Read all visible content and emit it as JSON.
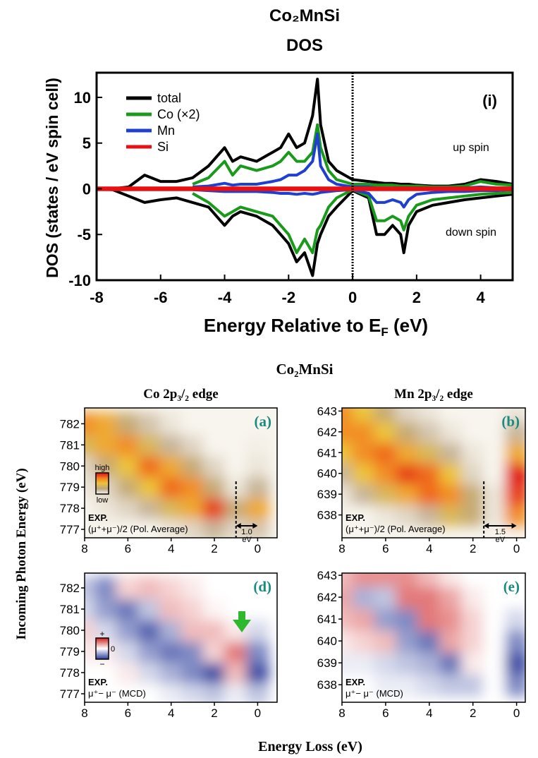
{
  "figure": {
    "title": "Co₂MnSi",
    "ylabel": "Incoming Photon Energy (eV)",
    "xlabel": "Energy Loss (eV)"
  },
  "chart_data": [
    {
      "type": "line",
      "title": "Co₂MnSi",
      "subtitle": "DOS",
      "ylabel": "DOS (states / eV spin cell)",
      "xlabel": [
        "Energy Relative to E",
        "F",
        " (eV)"
      ],
      "annotations": [
        "(i)",
        "up spin",
        "down spin"
      ],
      "xlim": [
        -8,
        5
      ],
      "ylim": [
        -10,
        12.7
      ],
      "xticks": [
        -8,
        -6,
        -4,
        -2,
        0,
        2,
        4
      ],
      "yticks": [
        -10,
        -5,
        0,
        5,
        10
      ],
      "vline": 0,
      "legend": "top-left",
      "x": [
        -8,
        -7.5,
        -7,
        -6.5,
        -6,
        -5.5,
        -5,
        -4.5,
        -4,
        -3.75,
        -3.5,
        -3,
        -2.5,
        -2.25,
        -2,
        -1.75,
        -1.5,
        -1.25,
        -1.1,
        -1,
        -0.75,
        -0.5,
        0,
        0.5,
        0.75,
        1,
        1.25,
        1.5,
        1.6,
        1.75,
        2,
        2.5,
        3,
        3.5,
        4,
        4.5,
        5
      ],
      "series": [
        {
          "name": "total",
          "color": "#000000",
          "values": [
            0,
            0,
            0.2,
            1.5,
            0.8,
            0.8,
            1.2,
            2.5,
            4.5,
            3,
            3.5,
            3,
            4,
            4.5,
            6,
            4.5,
            5,
            8,
            12,
            7,
            3,
            2,
            1,
            0.8,
            0.7,
            0.6,
            0.6,
            0.5,
            0.5,
            0.5,
            0.4,
            0.3,
            0.3,
            0.5,
            1,
            0.8,
            0.5
          ],
          "down_values": [
            0,
            -0.1,
            -0.8,
            -1.5,
            -1.2,
            -1,
            -1.5,
            -2,
            -4,
            -3,
            -2.5,
            -3,
            -4,
            -5,
            -6,
            -8,
            -7,
            -9.5,
            -6,
            -5,
            -3,
            -2,
            -0.2,
            -1,
            -5,
            -5,
            -4,
            -5,
            -7,
            -4,
            -2.5,
            -1.8,
            -1.5,
            -1.2,
            -1,
            -0.8,
            -0.6
          ]
        },
        {
          "name": "Co (×2)",
          "color": "#1a9a1a",
          "values": [
            null,
            null,
            null,
            null,
            null,
            null,
            0.5,
            1.2,
            3,
            1.5,
            2.5,
            2,
            2.5,
            3,
            4,
            3,
            3,
            4,
            7,
            4.5,
            2,
            1,
            0.5,
            0.5,
            0.4,
            0.4,
            0.4,
            0.3,
            0.3,
            0.3,
            0.3,
            0.2,
            0.2,
            0.3,
            0.8,
            0.5,
            0.4
          ],
          "down_values": [
            null,
            null,
            null,
            null,
            null,
            null,
            -0.5,
            -1.5,
            -3,
            -2.5,
            -2,
            -2.5,
            -3,
            -4,
            -5,
            -7,
            -5.5,
            -7,
            -4.5,
            -4,
            -2,
            -1,
            -0.1,
            -0.8,
            -3.5,
            -3.5,
            -3,
            -3.5,
            -4.5,
            -3,
            -1.8,
            -1.2,
            -1,
            -0.8,
            -0.6,
            -0.5,
            -0.4
          ]
        },
        {
          "name": "Mn",
          "color": "#1f3fd0",
          "values": [
            null,
            null,
            null,
            null,
            null,
            null,
            0.2,
            0.3,
            0.6,
            0.4,
            0.5,
            0.5,
            0.8,
            1,
            1.5,
            1.5,
            2,
            3,
            6,
            2.5,
            1,
            0.5,
            0.2,
            0.2,
            0.1,
            0.1,
            0.1,
            0.1,
            0.1,
            0.1,
            0.1,
            0.1,
            0.1,
            0.1,
            0.2,
            0.1,
            0.1
          ],
          "down_values": [
            null,
            null,
            null,
            null,
            null,
            null,
            -0.1,
            -0.2,
            -0.3,
            -0.3,
            -0.3,
            -0.3,
            -0.4,
            -0.5,
            -0.5,
            -0.6,
            -0.5,
            -0.6,
            -0.5,
            -0.4,
            -0.3,
            -0.2,
            -0.1,
            -0.5,
            -1.5,
            -1.5,
            -1.2,
            -1.5,
            -2,
            -1.2,
            -0.6,
            -0.4,
            -0.3,
            -0.3,
            -0.2,
            -0.2,
            -0.1
          ]
        },
        {
          "name": "Si",
          "color": "#e81010",
          "values": [
            0.1,
            0.1,
            0.1,
            0.1,
            0.1,
            0.1,
            0.1,
            0.1,
            0.1,
            0.1,
            0.1,
            0.1,
            0.1,
            0.1,
            0.1,
            0.1,
            0.1,
            0.1,
            0.1,
            0.1,
            0.1,
            0.1,
            0.1,
            0.1,
            0.1,
            0.1,
            0.1,
            0.1,
            0.1,
            0.1,
            0.1,
            0.1,
            0.1,
            0.1,
            0.1,
            0.1,
            0.1
          ],
          "down_values": [
            -0.1,
            -0.1,
            -0.1,
            -0.1,
            -0.1,
            -0.1,
            -0.1,
            -0.1,
            -0.1,
            -0.1,
            -0.1,
            -0.1,
            -0.1,
            -0.1,
            -0.1,
            -0.1,
            -0.1,
            -0.1,
            -0.1,
            -0.1,
            -0.1,
            -0.1,
            -0.1,
            -0.1,
            -0.1,
            -0.1,
            -0.1,
            -0.1,
            -0.1,
            -0.1,
            -0.1,
            -0.1,
            -0.1,
            -0.1,
            -0.1,
            -0.1,
            -0.1
          ]
        }
      ]
    },
    {
      "type": "heatmap",
      "title": "Co 2p₃/₂ edge",
      "label": "(a)",
      "notes": [
        "EXP.",
        "(μ⁺+μ⁻)/2 (Pol. Average)"
      ],
      "colorbar_labels": [
        "high",
        "low"
      ],
      "gap": {
        "value": 1.0,
        "label": "1.0",
        "unit": "eV"
      },
      "xlim": [
        8,
        -0.9
      ],
      "ylim": [
        776.6,
        782.75
      ],
      "xticks": [
        8,
        6,
        4,
        2,
        0
      ],
      "yticks": [
        777,
        778,
        779,
        780,
        781,
        782
      ],
      "zlim": [
        0,
        1
      ],
      "colormap": [
        "#f8f5ee",
        "#bca584",
        "#ecc43a",
        "#f48020",
        "#e01010"
      ],
      "x": [
        8,
        7,
        6,
        5,
        4,
        3,
        2,
        1,
        0
      ],
      "y": [
        777,
        778,
        779,
        780,
        781,
        782
      ],
      "z": [
        [
          0,
          0,
          0,
          0,
          0.05,
          0.1,
          0.2,
          0.1,
          0.15
        ],
        [
          0,
          0.05,
          0.1,
          0.2,
          0.4,
          0.6,
          0.9,
          0.3,
          0.6
        ],
        [
          0.05,
          0.1,
          0.3,
          0.5,
          0.8,
          0.7,
          0.3,
          0.05,
          0.2
        ],
        [
          0.1,
          0.3,
          0.5,
          0.8,
          0.6,
          0.3,
          0.1,
          0,
          0.05
        ],
        [
          0.4,
          0.6,
          0.7,
          0.4,
          0.2,
          0.1,
          0,
          0,
          0.02
        ],
        [
          0.7,
          0.6,
          0.3,
          0.15,
          0.05,
          0,
          0,
          0,
          0
        ]
      ]
    },
    {
      "type": "heatmap",
      "title": "Mn 2p₃/₂ edge",
      "label": "(b)",
      "notes": [
        "EXP.",
        "(μ⁺+μ⁻)/2 (Pol. Average)"
      ],
      "gap": {
        "value": 1.5,
        "label": "1.5",
        "unit": "eV"
      },
      "xlim": [
        8,
        -0.4
      ],
      "ylim": [
        636.9,
        643.15
      ],
      "xticks": [
        8,
        6,
        4,
        2,
        0
      ],
      "yticks": [
        638,
        639,
        640,
        641,
        642,
        643
      ],
      "zlim": [
        0,
        1
      ],
      "colormap": [
        "#f8f5ee",
        "#bca584",
        "#ecc43a",
        "#f48020",
        "#e01010"
      ],
      "x": [
        8,
        7,
        6,
        5,
        4,
        3,
        2,
        1,
        0
      ],
      "y": [
        638,
        639,
        640,
        641,
        642,
        643
      ],
      "z": [
        [
          0,
          0,
          0.05,
          0.1,
          0.2,
          0.4,
          0.3,
          0.05,
          0.7
        ],
        [
          0.05,
          0.2,
          0.4,
          0.6,
          0.8,
          0.7,
          0.3,
          0.05,
          0.9
        ],
        [
          0.2,
          0.5,
          0.7,
          0.9,
          0.8,
          0.5,
          0.1,
          0,
          1
        ],
        [
          0.5,
          0.7,
          0.8,
          0.6,
          0.4,
          0.2,
          0.05,
          0,
          0.6
        ],
        [
          0.7,
          0.7,
          0.5,
          0.3,
          0.15,
          0.05,
          0,
          0,
          0.2
        ],
        [
          0.7,
          0.5,
          0.3,
          0.1,
          0.05,
          0,
          0,
          0,
          0.05
        ]
      ]
    },
    {
      "type": "heatmap",
      "label": "(d)",
      "notes": [
        "EXP.",
        "μ⁺− μ⁻ (MCD)"
      ],
      "colorbar_labels": [
        "+",
        "0",
        "−"
      ],
      "xlim": [
        8,
        -0.9
      ],
      "ylim": [
        776.6,
        782.7
      ],
      "xticks": [
        8,
        6,
        4,
        2,
        0
      ],
      "yticks": [
        777,
        778,
        779,
        780,
        781,
        782
      ],
      "zlim": [
        -1,
        1
      ],
      "colormap": [
        "#2a3c9c",
        "#ffffff",
        "#d02020"
      ],
      "x": [
        8,
        7,
        6,
        5,
        4,
        3,
        2,
        1,
        0
      ],
      "y": [
        777,
        778,
        779,
        780,
        781,
        782
      ],
      "z": [
        [
          0,
          0,
          0,
          0,
          -0.1,
          -0.2,
          -0.3,
          -0.1,
          -0.3
        ],
        [
          0,
          0,
          0.1,
          -0.2,
          -0.4,
          -0.6,
          -0.9,
          0.3,
          -0.9
        ],
        [
          0.1,
          0.1,
          -0.2,
          -0.5,
          -0.7,
          -0.6,
          0.2,
          0.6,
          -0.6
        ],
        [
          0.2,
          -0.2,
          -0.5,
          -0.8,
          -0.4,
          0.3,
          0.3,
          0.1,
          -0.2
        ],
        [
          -0.2,
          -0.5,
          -0.7,
          -0.3,
          0.3,
          0.2,
          0.05,
          0,
          0
        ],
        [
          -0.3,
          -0.6,
          0.2,
          0.3,
          0.2,
          0.1,
          0,
          0,
          0
        ]
      ]
    },
    {
      "type": "heatmap",
      "label": "(e)",
      "notes": [
        "EXP.",
        "μ⁺− μ⁻ (MCD)"
      ],
      "xlim": [
        8,
        -0.4
      ],
      "ylim": [
        637.2,
        643.1
      ],
      "xticks": [
        8,
        6,
        4,
        2,
        0
      ],
      "yticks": [
        638,
        639,
        640,
        641,
        642,
        643
      ],
      "zlim": [
        -1,
        1
      ],
      "colormap": [
        "#2a3c9c",
        "#ffffff",
        "#d02020"
      ],
      "x": [
        8,
        7,
        6,
        5,
        4,
        3,
        2,
        1,
        0
      ],
      "y": [
        638,
        639,
        640,
        641,
        642,
        643
      ],
      "z": [
        [
          0,
          0,
          -0.1,
          -0.1,
          -0.2,
          -0.3,
          -0.3,
          0,
          -0.6
        ],
        [
          -0.1,
          -0.1,
          -0.2,
          -0.3,
          -0.4,
          -0.7,
          0.1,
          0,
          -0.9
        ],
        [
          0.1,
          0.2,
          0.3,
          -0.5,
          -0.7,
          0.4,
          0.2,
          0,
          -0.6
        ],
        [
          0.3,
          0.4,
          -0.5,
          -0.6,
          0.6,
          0.5,
          0.2,
          0,
          -0.2
        ],
        [
          0.4,
          -0.4,
          -0.3,
          0.6,
          0.6,
          0.4,
          0.1,
          0,
          0
        ],
        [
          0.3,
          0.5,
          0.5,
          0.5,
          0.3,
          0.1,
          0,
          0,
          0
        ]
      ]
    }
  ]
}
